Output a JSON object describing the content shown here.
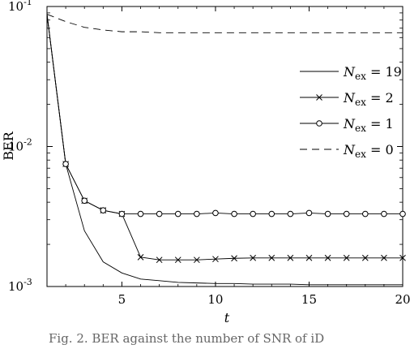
{
  "chart_data": {
    "type": "line",
    "title": "",
    "xlabel": "t",
    "ylabel": "BER",
    "xlim": [
      1,
      20
    ],
    "ylim": [
      0.001,
      0.1
    ],
    "yscale": "log",
    "xticks": [
      5,
      10,
      15,
      20
    ],
    "yticks": [
      {
        "value": 0.001,
        "base": "10",
        "exp": "-3"
      },
      {
        "value": 0.01,
        "base": "10",
        "exp": "-2"
      },
      {
        "value": 0.1,
        "base": "10",
        "exp": "-1"
      }
    ],
    "grid": false,
    "legend_position": "right",
    "series": [
      {
        "name": "N_ex = 19",
        "label_sub": "ex",
        "label_value": "19",
        "marker": "none",
        "dash": "solid",
        "x": [
          1,
          2,
          3,
          4,
          5,
          6,
          7,
          8,
          9,
          10,
          11,
          12,
          13,
          14,
          15,
          16,
          17,
          18,
          19,
          20
        ],
        "y": [
          0.088,
          0.0075,
          0.0025,
          0.0015,
          0.00125,
          0.00113,
          0.0011,
          0.00107,
          0.00106,
          0.00105,
          0.00105,
          0.00104,
          0.00104,
          0.00104,
          0.00103,
          0.00103,
          0.00103,
          0.00103,
          0.00103,
          0.00103
        ]
      },
      {
        "name": "N_ex = 2",
        "label_sub": "ex",
        "label_value": "2",
        "marker": "x",
        "dash": "solid",
        "x": [
          1,
          2,
          3,
          4,
          5,
          6,
          7,
          8,
          9,
          10,
          11,
          12,
          13,
          14,
          15,
          16,
          17,
          18,
          19,
          20
        ],
        "y": [
          0.088,
          0.0075,
          0.0041,
          0.0035,
          0.0033,
          0.00162,
          0.00155,
          0.00155,
          0.00155,
          0.00157,
          0.00159,
          0.0016,
          0.0016,
          0.0016,
          0.0016,
          0.0016,
          0.0016,
          0.0016,
          0.0016,
          0.0016
        ]
      },
      {
        "name": "N_ex = 1",
        "label_sub": "ex",
        "label_value": "1",
        "marker": "o",
        "dash": "solid",
        "x": [
          1,
          2,
          3,
          4,
          5,
          6,
          7,
          8,
          9,
          10,
          11,
          12,
          13,
          14,
          15,
          16,
          17,
          18,
          19,
          20
        ],
        "y": [
          0.088,
          0.0075,
          0.0041,
          0.0035,
          0.0033,
          0.0033,
          0.0033,
          0.0033,
          0.0033,
          0.00335,
          0.0033,
          0.0033,
          0.0033,
          0.0033,
          0.00335,
          0.0033,
          0.0033,
          0.0033,
          0.0033,
          0.0033
        ]
      },
      {
        "name": "N_ex = 0",
        "label_sub": "ex",
        "label_value": "0",
        "marker": "none",
        "dash": "dashed",
        "x": [
          1,
          2,
          3,
          4,
          5,
          6,
          7,
          8,
          9,
          10,
          11,
          12,
          13,
          14,
          15,
          16,
          17,
          18,
          19,
          20
        ],
        "y": [
          0.088,
          0.078,
          0.071,
          0.068,
          0.066,
          0.066,
          0.065,
          0.065,
          0.065,
          0.065,
          0.065,
          0.065,
          0.065,
          0.065,
          0.065,
          0.065,
          0.065,
          0.065,
          0.065,
          0.065
        ]
      }
    ]
  },
  "caption": "Fig. 2.   BER   against   the   number   of   SNR   of   iD"
}
